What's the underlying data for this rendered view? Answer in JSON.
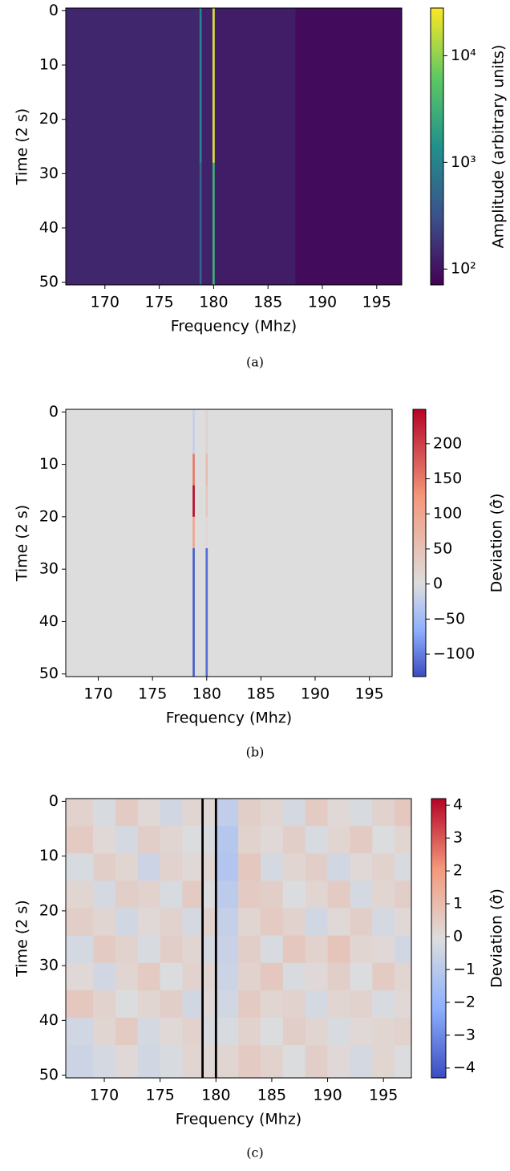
{
  "chart_data": [
    {
      "type": "heatmap",
      "caption": "(a)",
      "x_label": "Frequency (Mhz)",
      "y_label": "Time (2 s)",
      "xlim": [
        166.4,
        197.3
      ],
      "ylim": [
        50.5,
        -0.5
      ],
      "xticks": [
        170,
        175,
        180,
        185,
        190,
        195
      ],
      "yticks": [
        0,
        10,
        20,
        30,
        40,
        50
      ],
      "xbins": [
        166.4,
        178.7,
        178.9,
        179.9,
        180.1,
        187.5,
        197.3
      ],
      "ybins": [
        -0.5,
        28,
        50.5
      ],
      "values": [
        [
          140,
          1000,
          130,
          20000,
          120,
          85
        ],
        [
          140,
          500,
          130,
          3000,
          120,
          85
        ]
      ],
      "colormap": "viridis",
      "color_scale": "log",
      "clim": [
        71,
        28000
      ],
      "colorbar_label": "Amplitude (arbitrary units)",
      "cticks": [
        {
          "value": 100,
          "label": "10²"
        },
        {
          "value": 1000,
          "label": "10³"
        },
        {
          "value": 10000,
          "label": "10⁴"
        }
      ]
    },
    {
      "type": "heatmap",
      "caption": "(b)",
      "x_label": "Frequency (Mhz)",
      "y_label": "Time (2 s)",
      "xlim": [
        167,
        197.1
      ],
      "ylim": [
        50.5,
        -0.5
      ],
      "xticks": [
        170,
        175,
        180,
        185,
        190,
        195
      ],
      "yticks": [
        0,
        10,
        20,
        30,
        40,
        50
      ],
      "xbins": [
        167,
        178.7,
        178.9,
        179.9,
        180.1,
        197.1
      ],
      "ybins": [
        -0.5,
        8,
        14,
        20,
        26,
        50.5
      ],
      "values": [
        [
          0,
          -20,
          0,
          20,
          0
        ],
        [
          0,
          150,
          0,
          60,
          0
        ],
        [
          0,
          240,
          0,
          40,
          0
        ],
        [
          0,
          100,
          0,
          10,
          0
        ],
        [
          0,
          -120,
          0,
          -110,
          0
        ]
      ],
      "colormap": "coolwarm",
      "color_scale": "linear",
      "clim": [
        -132,
        249
      ],
      "norm_center": 0,
      "colorbar_label": "Deviation (σ̂)",
      "cticks": [
        {
          "value": -100,
          "label": "−100"
        },
        {
          "value": -50,
          "label": "−50"
        },
        0,
        50,
        100,
        150,
        200
      ]
    },
    {
      "type": "heatmap",
      "caption": "(c)",
      "x_label": "Frequency (Mhz)",
      "y_label": "Time (2 s)",
      "xlim": [
        166.55,
        197.5
      ],
      "ylim": [
        50.5,
        -0.5
      ],
      "xticks": [
        170,
        175,
        180,
        185,
        190,
        195
      ],
      "yticks": [
        0,
        10,
        20,
        30,
        40,
        50
      ],
      "xbins": [
        166.55,
        169,
        171,
        173,
        175,
        177,
        178.7,
        178.9,
        179.9,
        180.1,
        182,
        184,
        186,
        188,
        190,
        192,
        194,
        196,
        197.5
      ],
      "ybins": [
        -0.5,
        4.5,
        9.5,
        14.5,
        19.5,
        24.5,
        29.5,
        34.5,
        39.5,
        44.5,
        50.5
      ],
      "values": [
        [
          0.3,
          -0.2,
          0.5,
          0.1,
          -0.4,
          0.2,
          null,
          0.1,
          null,
          -0.8,
          0.4,
          0.2,
          -0.3,
          0.5,
          0.1,
          -0.2,
          0.3,
          0.6
        ],
        [
          0.5,
          0.1,
          -0.3,
          0.4,
          0.2,
          -0.1,
          null,
          -0.2,
          null,
          -1.1,
          0.3,
          0.1,
          0.4,
          -0.2,
          0.2,
          0.5,
          -0.1,
          0.2
        ],
        [
          -0.2,
          0.4,
          0.2,
          -0.5,
          0.3,
          0.1,
          null,
          0.2,
          null,
          -1.2,
          0.6,
          -0.3,
          0.2,
          0.4,
          -0.4,
          0.1,
          0.3,
          -0.2
        ],
        [
          0.2,
          -0.3,
          0.4,
          0.3,
          -0.2,
          0.5,
          null,
          -0.1,
          null,
          -0.9,
          0.5,
          0.4,
          -0.1,
          0.2,
          0.5,
          -0.3,
          0.2,
          0.4
        ],
        [
          0.4,
          0.2,
          -0.4,
          0.1,
          0.3,
          -0.3,
          null,
          0.3,
          null,
          -0.7,
          0.2,
          0.5,
          0.3,
          -0.4,
          0.1,
          0.4,
          -0.3,
          0.1
        ],
        [
          -0.3,
          0.5,
          0.3,
          -0.2,
          0.4,
          0.2,
          null,
          -0.3,
          null,
          -0.6,
          0.4,
          -0.2,
          0.6,
          0.3,
          0.7,
          0.2,
          0.1,
          -0.4
        ],
        [
          0.1,
          -0.4,
          0.2,
          0.5,
          -0.1,
          0.3,
          null,
          0.2,
          null,
          -0.5,
          0.3,
          0.6,
          -0.2,
          0.1,
          0.4,
          -0.1,
          0.5,
          0.2
        ],
        [
          0.6,
          0.3,
          -0.1,
          0.2,
          0.4,
          -0.4,
          null,
          0.1,
          null,
          -0.4,
          0.5,
          0.2,
          0.3,
          -0.3,
          0.2,
          0.3,
          -0.2,
          0.1
        ],
        [
          -0.4,
          0.2,
          0.5,
          -0.3,
          0.1,
          0.3,
          null,
          -0.2,
          null,
          -0.2,
          0.3,
          -0.1,
          0.4,
          0.2,
          -0.2,
          0.1,
          0.2,
          0.3
        ],
        [
          -0.5,
          -0.3,
          0.1,
          -0.4,
          -0.2,
          0.2,
          null,
          0.1,
          null,
          0.2,
          0.5,
          0.3,
          -0.1,
          0.4,
          0.1,
          -0.3,
          0.2,
          -0.1
        ]
      ],
      "colormap": "coolwarm",
      "color_scale": "linear",
      "clim": [
        -4.3,
        4.2
      ],
      "mask_color": "#000000",
      "colorbar_label": "Deviation (σ̂)",
      "cticks": [
        {
          "value": -4,
          "label": "−4"
        },
        {
          "value": -3,
          "label": "−3"
        },
        {
          "value": -2,
          "label": "−2"
        },
        {
          "value": -1,
          "label": "−1"
        },
        0,
        1,
        2,
        3,
        4
      ]
    }
  ]
}
